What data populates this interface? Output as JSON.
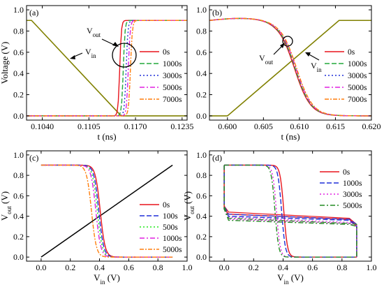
{
  "chart_data": [
    {
      "type": "line",
      "panel_label": "(a)",
      "xlabel": "t (ns)",
      "ylabel": "Voltage (V)",
      "xlim": [
        0.1018,
        0.1242
      ],
      "ylim": [
        -0.04,
        1.04
      ],
      "xticks": [
        0.104,
        0.1105,
        0.117,
        0.1235
      ],
      "xtick_labels": [
        "0.1040",
        "0.1105",
        "0.1170",
        "0.1235"
      ],
      "yticks": [
        0.0,
        0.2,
        0.4,
        0.6,
        0.8,
        1.0
      ],
      "ytick_labels": [
        "0.0",
        "0.2",
        "0.4",
        "0.6",
        "0.8",
        "1.0"
      ],
      "legend_position": "right",
      "legend": [
        "0s",
        "1000s",
        "3000s",
        "5000s",
        "7000s"
      ],
      "colors": [
        "#e8141c",
        "#22a83a",
        "#1f2fd8",
        "#e020e0",
        "#ff7f0e"
      ],
      "input": {
        "name": "V_in",
        "color": "#808000",
        "x": [
          0.1018,
          0.1025,
          0.115,
          0.1242
        ],
        "y": [
          0.9,
          0.9,
          0.0,
          0.0
        ]
      },
      "series": [
        {
          "name": "0s",
          "t50": 0.1148,
          "k": 850,
          "dash": ""
        },
        {
          "name": "1000s",
          "t50": 0.1153,
          "k": 820,
          "dash": "7,3"
        },
        {
          "name": "3000s",
          "t50": 0.1157,
          "k": 800,
          "dash": "2,3"
        },
        {
          "name": "5000s",
          "t50": 0.116,
          "k": 780,
          "dash": "7,3,2,3"
        },
        {
          "name": "7000s",
          "t50": 0.1163,
          "k": 760,
          "dash": "6,2,2,2"
        }
      ],
      "annotations": [
        {
          "text": "V",
          "sub": "out"
        },
        {
          "text": "V",
          "sub": "in"
        }
      ],
      "rising": true
    },
    {
      "type": "line",
      "panel_label": "(b)",
      "xlabel": "t (ns)",
      "ylabel": "",
      "xlim": [
        0.5975,
        0.62
      ],
      "ylim": [
        -0.04,
        1.04
      ],
      "xticks": [
        0.6,
        0.605,
        0.61,
        0.615,
        0.62
      ],
      "xtick_labels": [
        "0.600",
        "0.605",
        "0.610",
        "0.615",
        "0.620"
      ],
      "yticks": [
        0.0,
        0.2,
        0.4,
        0.6,
        0.8,
        1.0
      ],
      "ytick_labels": [
        "0.0",
        "0.2",
        "0.4",
        "0.6",
        "0.8",
        "1.0"
      ],
      "legend_position": "right",
      "legend": [
        "0s",
        "1000s",
        "3000s",
        "5000s",
        "7000s"
      ],
      "colors": [
        "#e8141c",
        "#22a83a",
        "#1f2fd8",
        "#e020e0",
        "#ff7f0e"
      ],
      "input": {
        "name": "V_in",
        "color": "#808000",
        "x": [
          0.5975,
          0.6,
          0.6155,
          0.62
        ],
        "y": [
          0.0,
          0.0,
          0.9,
          0.9
        ]
      },
      "series": [
        {
          "name": "0s",
          "t50": 0.6093,
          "k": 900,
          "dash": ""
        },
        {
          "name": "1000s",
          "t50": 0.6094,
          "k": 900,
          "dash": "7,3"
        },
        {
          "name": "3000s",
          "t50": 0.6095,
          "k": 900,
          "dash": "2,3"
        },
        {
          "name": "5000s",
          "t50": 0.6095,
          "k": 900,
          "dash": "7,3,2,3"
        },
        {
          "name": "7000s",
          "t50": 0.6096,
          "k": 900,
          "dash": "6,2,2,2"
        }
      ],
      "annotations": [
        {
          "text": "V",
          "sub": "out"
        },
        {
          "text": "V",
          "sub": "in"
        }
      ],
      "rising": false
    },
    {
      "type": "line",
      "panel_label": "(c)",
      "xlabel": "V_in (V)",
      "ylabel": "V_out (V)",
      "xlim": [
        -0.1,
        1.0
      ],
      "ylim": [
        -0.04,
        1.04
      ],
      "xticks": [
        0.0,
        0.2,
        0.4,
        0.6,
        0.8,
        1.0
      ],
      "xtick_labels": [
        "0.0",
        "0.2",
        "0.4",
        "0.6",
        "0.8",
        "1.0"
      ],
      "yticks": [
        0.0,
        0.2,
        0.4,
        0.6,
        0.8,
        1.0
      ],
      "ytick_labels": [
        "0.0",
        "0.2",
        "0.4",
        "0.6",
        "0.8",
        "1.0"
      ],
      "legend_position": "right",
      "legend": [
        "0s",
        "100s",
        "500s",
        "1000s",
        "5000s"
      ],
      "colors": [
        "#e8141c",
        "#1f2fd8",
        "#22e81c",
        "#e020e0",
        "#ff7f0e"
      ],
      "diagonal": {
        "x": [
          0.0,
          0.9
        ],
        "y": [
          0.0,
          0.9
        ]
      },
      "series": [
        {
          "name": "0s",
          "vm": 0.405,
          "dash": ""
        },
        {
          "name": "100s",
          "vm": 0.395,
          "dash": "7,3"
        },
        {
          "name": "500s",
          "vm": 0.385,
          "dash": "2,3"
        },
        {
          "name": "1000s",
          "vm": 0.375,
          "dash": "7,3,2,3"
        },
        {
          "name": "5000s",
          "vm": 0.345,
          "dash": "6,2,2,2"
        }
      ]
    },
    {
      "type": "line",
      "panel_label": "(d)",
      "xlabel": "V_in (V)",
      "ylabel": "V_out (V)",
      "xlim": [
        -0.1,
        1.0
      ],
      "ylim": [
        -0.04,
        1.04
      ],
      "xticks": [
        0.0,
        0.2,
        0.4,
        0.6,
        0.8,
        1.0
      ],
      "xtick_labels": [
        "0.0",
        "0.2",
        "0.4",
        "0.6",
        "0.8",
        "1.0"
      ],
      "yticks": [
        0.0,
        0.2,
        0.4,
        0.6,
        0.8,
        1.0
      ],
      "ytick_labels": [
        "0.0",
        "0.2",
        "0.4",
        "0.6",
        "0.8",
        "1.0"
      ],
      "legend_position": "top-right",
      "legend": [
        "0s",
        "1000s",
        "3000s",
        "5000s"
      ],
      "colors": [
        "#e8141c",
        "#1f2fd8",
        "#e020e0",
        "#228b22"
      ],
      "series": [
        {
          "name": "0s",
          "vm": 0.405,
          "lo": 0.37,
          "hi": 0.42,
          "dash": ""
        },
        {
          "name": "1000s",
          "vm": 0.39,
          "lo": 0.36,
          "hi": 0.4,
          "dash": "7,3"
        },
        {
          "name": "3000s",
          "vm": 0.355,
          "lo": 0.33,
          "hi": 0.37,
          "dash": "2,3"
        },
        {
          "name": "5000s",
          "vm": 0.345,
          "lo": 0.32,
          "hi": 0.36,
          "dash": "7,3,2,3"
        }
      ]
    }
  ]
}
